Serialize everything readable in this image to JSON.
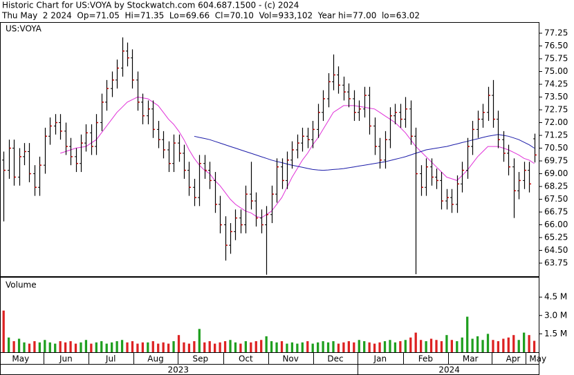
{
  "header": {
    "line1": "Historic Chart for US:VOYA by Stockwatch.com 604.687.1500 - (c) 2024",
    "line2": "Thu May  2 2024  Op=71.05  Hi=71.35  Lo=69.66  Cl=70.10  Vol=933,102  Year hi=77.00  lo=63.02"
  },
  "x_axis": {
    "xlim": [
      -0.7,
      104
    ],
    "xticks": [
      {
        "value": 3.3,
        "label": "May"
      },
      {
        "value": 12.1,
        "label": "Jun"
      },
      {
        "value": 20.8,
        "label": "Jul"
      },
      {
        "value": 29.5,
        "label": "Aug"
      },
      {
        "value": 38.2,
        "label": "Sep"
      },
      {
        "value": 47,
        "label": "Oct"
      },
      {
        "value": 55.7,
        "label": "Nov"
      },
      {
        "value": 64.4,
        "label": "Dec"
      },
      {
        "value": 73.1,
        "label": "Jan"
      },
      {
        "value": 81.9,
        "label": "Feb"
      },
      {
        "value": 90.6,
        "label": "Mar"
      },
      {
        "value": 98.9,
        "label": "Apr"
      },
      {
        "value": 103.7,
        "label": "May"
      }
    ],
    "year_ticks": [
      {
        "value": 33.9,
        "label": "2023"
      },
      {
        "value": 86.5,
        "label": "2024"
      }
    ]
  },
  "chart_data": [
    {
      "type": "ohlc",
      "title": "US:VOYA",
      "color": "#000000",
      "close_color": "#cc0000",
      "open": [
        69.8,
        69.2,
        70.5,
        68.8,
        70.0,
        70.3,
        69.0,
        68.2,
        69.5,
        71.2,
        71.8,
        72.0,
        71.5,
        70.6,
        70.0,
        69.6,
        70.8,
        71.4,
        70.6,
        72.0,
        73.2,
        74.0,
        74.5,
        75.2,
        76.2,
        75.8,
        74.5,
        73.2,
        72.4,
        72.8,
        71.6,
        71.0,
        70.4,
        69.6,
        70.8,
        70.2,
        69.2,
        68.2,
        67.6,
        69.6,
        69.2,
        68.6,
        67.2,
        66.0,
        64.8,
        65.6,
        66.4,
        66.0,
        67.8,
        67.4,
        66.4,
        66.0,
        66.6,
        67.8,
        69.4,
        68.6,
        69.8,
        70.4,
        70.8,
        71.2,
        71.0,
        71.6,
        72.6,
        73.4,
        74.4,
        74.8,
        74.2,
        73.8,
        73.4,
        72.6,
        72.8,
        73.6,
        71.8,
        70.6,
        69.8,
        71.0,
        72.4,
        72.6,
        72.2,
        72.8,
        71.2,
        69.0,
        68.2,
        69.4,
        68.8,
        68.6,
        67.4,
        67.6,
        67.2,
        68.4,
        69.2,
        70.6,
        71.6,
        72.2,
        72.6,
        73.6,
        72.2,
        71.0,
        70.2,
        69.4,
        68.0,
        68.6,
        69.2,
        71.05
      ],
      "high": [
        70.3,
        71.0,
        71.0,
        70.5,
        70.8,
        70.8,
        69.5,
        70.0,
        71.7,
        72.3,
        72.5,
        72.5,
        72.0,
        71.1,
        70.5,
        71.3,
        71.9,
        71.9,
        72.5,
        73.7,
        74.5,
        75.0,
        75.7,
        77.0,
        76.7,
        76.3,
        75.0,
        73.7,
        73.3,
        73.3,
        72.1,
        71.5,
        70.9,
        71.3,
        71.3,
        70.7,
        69.7,
        68.7,
        70.1,
        70.1,
        69.7,
        69.1,
        67.7,
        66.5,
        66.1,
        66.9,
        66.9,
        68.3,
        69.7,
        67.9,
        66.9,
        67.1,
        68.3,
        69.9,
        69.9,
        70.3,
        70.9,
        71.3,
        71.7,
        71.7,
        72.1,
        73.1,
        73.9,
        74.9,
        76.0,
        75.3,
        74.7,
        74.3,
        73.9,
        73.3,
        74.1,
        74.1,
        72.3,
        71.1,
        71.5,
        72.9,
        73.1,
        73.1,
        73.5,
        73.3,
        71.7,
        69.5,
        69.9,
        69.9,
        69.3,
        69.1,
        68.1,
        68.1,
        68.9,
        69.7,
        71.1,
        72.1,
        72.7,
        73.1,
        74.1,
        74.5,
        72.7,
        71.5,
        70.7,
        69.9,
        69.1,
        69.7,
        69.7,
        71.35
      ],
      "low": [
        66.2,
        68.7,
        68.3,
        68.3,
        69.5,
        68.5,
        67.7,
        67.7,
        69.0,
        70.7,
        71.3,
        71.0,
        70.1,
        69.5,
        69.1,
        69.1,
        70.3,
        70.1,
        70.1,
        71.5,
        72.7,
        73.5,
        74.0,
        74.7,
        75.3,
        74.0,
        72.7,
        71.9,
        71.9,
        71.1,
        70.5,
        69.9,
        69.1,
        69.1,
        69.7,
        68.7,
        67.7,
        67.1,
        67.1,
        68.7,
        68.1,
        66.7,
        65.5,
        63.9,
        64.3,
        65.1,
        65.5,
        65.5,
        66.9,
        65.9,
        65.5,
        63.07,
        66.1,
        67.3,
        68.1,
        68.1,
        69.3,
        69.9,
        70.3,
        70.5,
        70.5,
        71.1,
        72.1,
        72.9,
        73.9,
        73.7,
        73.3,
        72.9,
        72.1,
        72.1,
        72.3,
        71.3,
        70.1,
        69.3,
        69.3,
        70.5,
        71.9,
        71.7,
        71.7,
        70.7,
        63.1,
        67.7,
        67.7,
        68.3,
        68.1,
        66.9,
        66.9,
        66.7,
        66.7,
        67.9,
        68.7,
        70.1,
        71.1,
        71.7,
        72.1,
        71.7,
        70.5,
        69.7,
        68.9,
        66.4,
        67.5,
        68.1,
        67.9,
        69.66
      ],
      "close": [
        69.2,
        70.5,
        68.8,
        70.0,
        70.3,
        69.0,
        68.2,
        69.5,
        71.2,
        71.8,
        72.0,
        71.5,
        70.6,
        70.0,
        69.6,
        70.8,
        71.4,
        70.6,
        72.0,
        73.2,
        74.0,
        74.5,
        75.2,
        76.2,
        75.8,
        74.5,
        73.2,
        72.4,
        72.8,
        71.6,
        71.0,
        70.4,
        69.6,
        70.8,
        70.2,
        69.2,
        68.2,
        67.6,
        69.6,
        69.2,
        68.6,
        67.2,
        66.0,
        64.8,
        65.6,
        66.4,
        66.0,
        67.8,
        67.4,
        66.4,
        66.0,
        66.6,
        67.8,
        69.4,
        68.6,
        69.8,
        70.4,
        70.8,
        71.2,
        71.0,
        71.6,
        72.6,
        73.4,
        74.4,
        74.8,
        74.2,
        73.8,
        73.4,
        72.6,
        72.8,
        73.6,
        71.8,
        70.6,
        69.8,
        71.0,
        72.4,
        72.6,
        72.2,
        72.8,
        71.2,
        69.0,
        68.2,
        69.4,
        68.8,
        68.6,
        67.4,
        67.6,
        67.2,
        68.4,
        69.2,
        70.6,
        71.6,
        72.2,
        72.6,
        73.6,
        72.2,
        71.0,
        70.2,
        69.4,
        68.0,
        68.6,
        69.2,
        68.4,
        70.1
      ],
      "ma": [
        {
          "color": "#e030d8",
          "values": [
            null,
            null,
            null,
            null,
            null,
            null,
            null,
            null,
            null,
            null,
            null,
            70.2,
            70.3,
            70.4,
            70.5,
            70.55,
            70.6,
            70.8,
            71.0,
            71.4,
            71.8,
            72.2,
            72.6,
            72.9,
            73.2,
            73.35,
            73.5,
            73.45,
            73.4,
            73.2,
            73.0,
            72.6,
            72.2,
            71.9,
            71.5,
            71.0,
            70.4,
            69.9,
            69.5,
            69.2,
            69.0,
            68.6,
            68.3,
            67.9,
            67.5,
            67.2,
            67.0,
            66.8,
            66.7,
            66.5,
            66.4,
            66.6,
            66.8,
            67.2,
            67.6,
            68.2,
            68.8,
            69.3,
            69.8,
            70.2,
            70.7,
            71.1,
            71.6,
            72.1,
            72.6,
            72.8,
            73.0,
            73.0,
            73.0,
            72.95,
            72.9,
            72.85,
            72.8,
            72.6,
            72.4,
            72.2,
            72.0,
            71.7,
            71.4,
            71.0,
            70.6,
            70.3,
            70.0,
            69.7,
            69.4,
            69.1,
            68.8,
            68.7,
            68.6,
            68.9,
            69.2,
            69.6,
            70.0,
            70.3,
            70.6,
            70.6,
            70.6,
            70.5,
            70.4,
            70.25,
            70.1,
            69.9,
            69.8,
            69.6
          ]
        },
        {
          "color": "#1a1aa8",
          "values": [
            null,
            null,
            null,
            null,
            null,
            null,
            null,
            null,
            null,
            null,
            null,
            null,
            null,
            null,
            null,
            null,
            null,
            null,
            null,
            null,
            null,
            null,
            null,
            null,
            null,
            null,
            null,
            null,
            null,
            null,
            null,
            null,
            null,
            null,
            null,
            null,
            null,
            71.2,
            71.13,
            71.07,
            71.0,
            70.9,
            70.8,
            70.7,
            70.6,
            70.5,
            70.4,
            70.3,
            70.2,
            70.1,
            70.0,
            69.9,
            69.8,
            69.72,
            69.65,
            69.57,
            69.5,
            69.44,
            69.38,
            69.31,
            69.25,
            69.22,
            69.2,
            69.22,
            69.25,
            69.27,
            69.3,
            69.35,
            69.4,
            69.45,
            69.5,
            69.55,
            69.6,
            69.65,
            69.7,
            69.77,
            69.85,
            69.92,
            70.0,
            70.1,
            70.2,
            70.3,
            70.4,
            70.45,
            70.5,
            70.55,
            70.6,
            70.68,
            70.75,
            70.83,
            70.9,
            70.98,
            71.05,
            71.13,
            71.2,
            71.25,
            71.3,
            71.25,
            71.2,
            71.1,
            71.0,
            70.85,
            70.7,
            70.5
          ]
        }
      ],
      "ylim": [
        62.98,
        77.86
      ],
      "yticks": [
        63.75,
        {
          "value": 64.5,
          "label": "64.50"
        },
        65.25,
        {
          "value": 66,
          "label": "66.00"
        },
        66.75,
        {
          "value": 67.5,
          "label": "67.50"
        },
        68.25,
        {
          "value": 69,
          "label": "69.00"
        },
        69.75,
        {
          "value": 70.5,
          "label": "70.50"
        },
        71.25,
        {
          "value": 72,
          "label": "72.00"
        },
        72.75,
        {
          "value": 73.5,
          "label": "73.50"
        },
        74.25,
        {
          "value": 75,
          "label": "75.00"
        },
        75.75,
        {
          "value": 76.5,
          "label": "76.50"
        },
        77.25
      ]
    },
    {
      "type": "bar",
      "title": "Volume",
      "up_color": "#1f9f1f",
      "down_color": "#dd2222",
      "values": [
        3.4,
        1.2,
        0.9,
        1.1,
        0.8,
        0.7,
        0.9,
        0.8,
        1.0,
        0.8,
        0.7,
        0.9,
        0.8,
        0.9,
        0.7,
        0.8,
        1.0,
        0.7,
        0.8,
        0.9,
        0.7,
        0.8,
        0.9,
        1.0,
        0.8,
        0.9,
        0.7,
        0.8,
        0.8,
        0.9,
        0.7,
        0.8,
        0.7,
        0.9,
        1.4,
        0.8,
        0.7,
        0.9,
        1.9,
        0.8,
        0.9,
        0.7,
        0.8,
        0.9,
        1.0,
        0.8,
        0.7,
        0.9,
        0.8,
        0.9,
        1.0,
        1.3,
        0.9,
        0.8,
        0.9,
        0.7,
        0.8,
        0.7,
        0.8,
        0.9,
        0.7,
        0.8,
        0.9,
        0.8,
        0.9,
        0.7,
        0.8,
        0.9,
        0.8,
        1.0,
        0.9,
        0.8,
        0.7,
        0.8,
        0.9,
        1.0,
        0.8,
        0.9,
        1.0,
        1.2,
        1.6,
        1.0,
        0.9,
        1.1,
        1.0,
        0.9,
        1.4,
        1.0,
        0.9,
        1.2,
        2.9,
        1.1,
        1.3,
        1.0,
        1.5,
        1.0,
        0.9,
        1.1,
        1.2,
        1.4,
        1.0,
        1.6,
        1.4,
        0.93
      ],
      "ylim": [
        0,
        6.09
      ],
      "yticks": [
        {
          "value": 1.5,
          "label": "1.5 M"
        },
        {
          "value": 3,
          "label": "3.0 M"
        },
        {
          "value": 4.5,
          "label": "4.5 M"
        }
      ]
    }
  ]
}
